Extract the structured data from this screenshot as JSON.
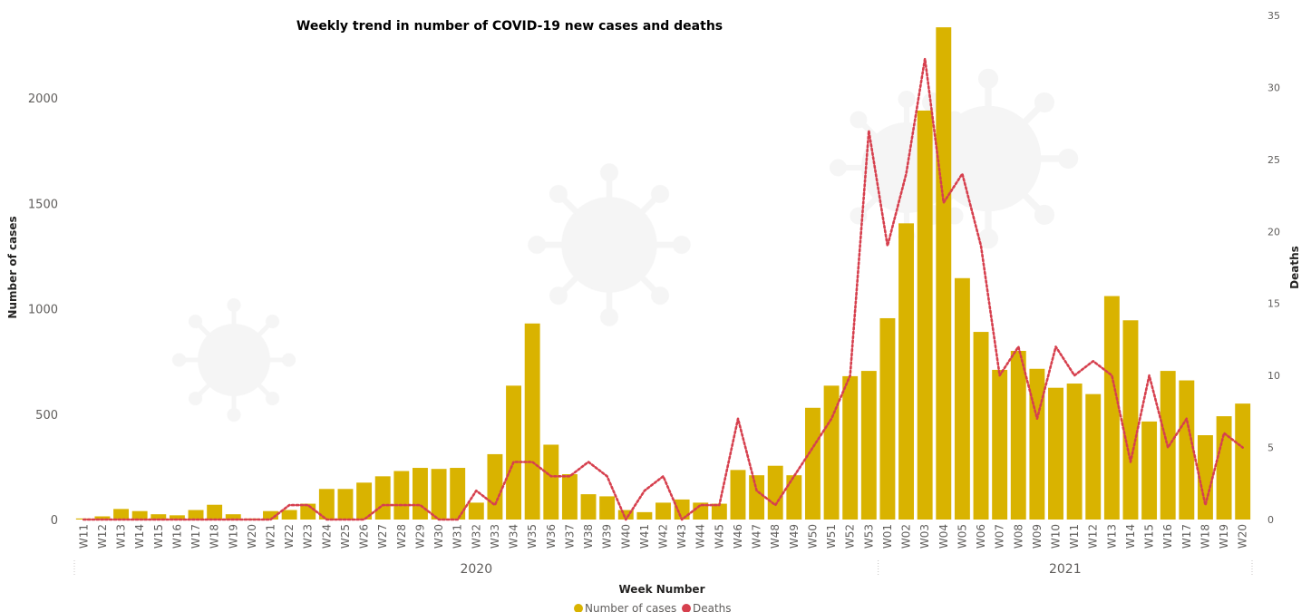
{
  "chart_data": {
    "type": "bar+line",
    "title": "Weekly trend in number of  COVID-19 new cases and deaths",
    "xlabel": "Week Number",
    "ylabel_left": "Number of cases",
    "ylabel_right": "Deaths",
    "ylim_left": [
      0,
      2400
    ],
    "ylim_right": [
      0,
      35
    ],
    "yticks_left": [
      0,
      500,
      1000,
      1500,
      2000
    ],
    "yticks_right": [
      0,
      5,
      10,
      15,
      20,
      25,
      30,
      35
    ],
    "year_groups": [
      {
        "label": "2020",
        "count": 43
      },
      {
        "label": "2021",
        "count": 20
      }
    ],
    "categories": [
      "W11",
      "W12",
      "W13",
      "W14",
      "W15",
      "W16",
      "W17",
      "W18",
      "W19",
      "W20",
      "W21",
      "W22",
      "W23",
      "W24",
      "W25",
      "W26",
      "W27",
      "W28",
      "W29",
      "W30",
      "W31",
      "W32",
      "W33",
      "W34",
      "W35",
      "W36",
      "W37",
      "W38",
      "W39",
      "W40",
      "W41",
      "W42",
      "W43",
      "W44",
      "W45",
      "W46",
      "W47",
      "W48",
      "W49",
      "W50",
      "W51",
      "W52",
      "W53",
      "W01",
      "W02",
      "W03",
      "W04",
      "W05",
      "W06",
      "W07",
      "W08",
      "W09",
      "W10",
      "W11",
      "W12",
      "W13",
      "W14",
      "W15",
      "W16",
      "W17",
      "W18",
      "W19",
      "W20"
    ],
    "series": [
      {
        "name": "Number of cases",
        "type": "bar",
        "axis": "left",
        "color": "#d9b300",
        "values": [
          5,
          15,
          50,
          40,
          25,
          20,
          45,
          70,
          25,
          5,
          40,
          45,
          75,
          145,
          145,
          175,
          205,
          230,
          245,
          240,
          245,
          80,
          310,
          635,
          930,
          355,
          215,
          120,
          110,
          45,
          35,
          80,
          95,
          80,
          75,
          235,
          210,
          255,
          210,
          530,
          635,
          680,
          705,
          955,
          1405,
          1940,
          2335,
          1145,
          890,
          710,
          800,
          715,
          625,
          645,
          595,
          1060,
          945,
          465,
          705,
          660,
          400,
          490,
          550
        ]
      },
      {
        "name": "Deaths",
        "type": "line",
        "axis": "right",
        "color": "#d6404e",
        "values": [
          0,
          0,
          0,
          0,
          0,
          0,
          0,
          0,
          0,
          0,
          0,
          1,
          1,
          0,
          0,
          0,
          1,
          1,
          1,
          0,
          0,
          2,
          1,
          4,
          4,
          3,
          3,
          4,
          3,
          0,
          2,
          3,
          0,
          1,
          1,
          7,
          2,
          1,
          3,
          5,
          7,
          10,
          27,
          19,
          24,
          32,
          22,
          24,
          19,
          10,
          12,
          7,
          12,
          10,
          11,
          10,
          4,
          10,
          5,
          7,
          1,
          6,
          5
        ]
      }
    ],
    "legend_position": "bottom-center"
  }
}
